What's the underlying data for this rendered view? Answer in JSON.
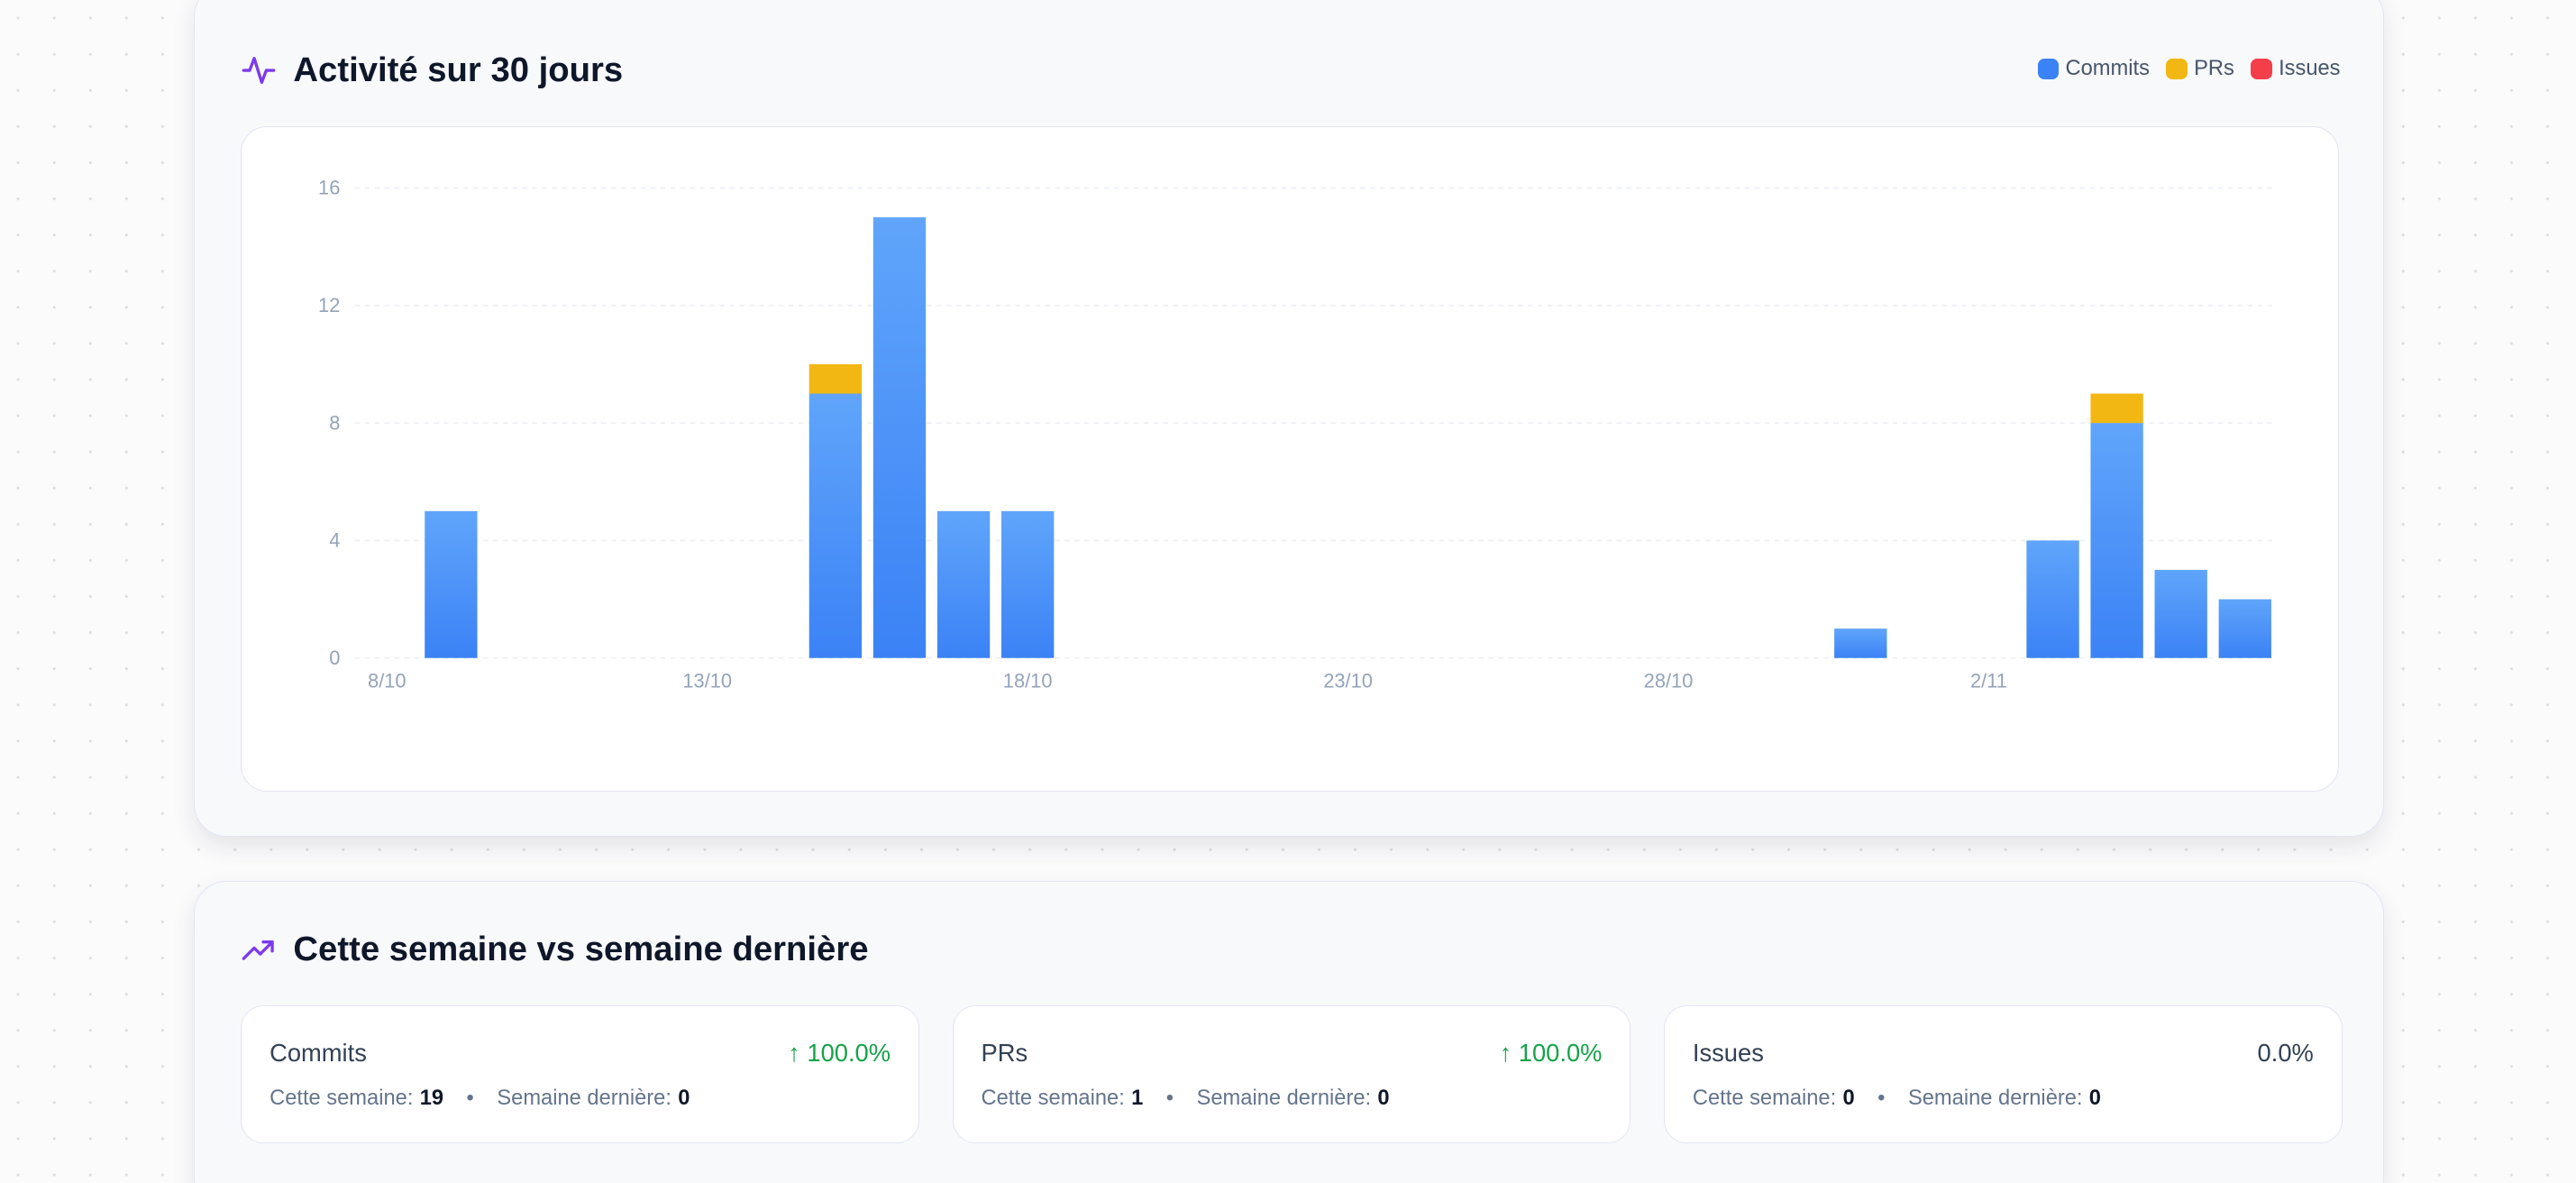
{
  "activity": {
    "title": "Activité sur 30 jours",
    "icon": "activity-pulse-icon",
    "legend": [
      {
        "label": "Commits",
        "color": "#3b82f6"
      },
      {
        "label": "PRs",
        "color": "#f2b713"
      },
      {
        "label": "Issues",
        "color": "#f43f4a"
      }
    ]
  },
  "chart_data": {
    "type": "bar",
    "stacked": true,
    "categories": [
      "8/10",
      "9/10",
      "10/10",
      "11/10",
      "12/10",
      "13/10",
      "14/10",
      "15/10",
      "16/10",
      "17/10",
      "18/10",
      "19/10",
      "20/10",
      "21/10",
      "22/10",
      "23/10",
      "24/10",
      "25/10",
      "26/10",
      "27/10",
      "28/10",
      "29/10",
      "30/10",
      "31/10",
      "1/11",
      "2/11",
      "3/11",
      "4/11",
      "5/11",
      "6/11"
    ],
    "x_tick_labels": [
      "8/10",
      "13/10",
      "18/10",
      "23/10",
      "28/10",
      "2/11"
    ],
    "y_ticks": [
      0,
      4,
      8,
      12,
      16
    ],
    "ylim": [
      0,
      16
    ],
    "grid": true,
    "legend_position": "top-right",
    "series": [
      {
        "name": "Commits",
        "color": "#3b82f6",
        "values": [
          0,
          5,
          0,
          0,
          0,
          0,
          0,
          9,
          15,
          5,
          5,
          0,
          0,
          0,
          0,
          0,
          0,
          0,
          0,
          0,
          0,
          0,
          0,
          1,
          0,
          0,
          4,
          8,
          3,
          2
        ]
      },
      {
        "name": "PRs",
        "color": "#f2b713",
        "values": [
          0,
          0,
          0,
          0,
          0,
          0,
          0,
          1,
          0,
          0,
          0,
          0,
          0,
          0,
          0,
          0,
          0,
          0,
          0,
          0,
          0,
          0,
          0,
          0,
          0,
          0,
          0,
          1,
          0,
          0
        ]
      },
      {
        "name": "Issues",
        "color": "#f43f4a",
        "values": [
          0,
          0,
          0,
          0,
          0,
          0,
          0,
          0,
          0,
          0,
          0,
          0,
          0,
          0,
          0,
          0,
          0,
          0,
          0,
          0,
          0,
          0,
          0,
          0,
          0,
          0,
          0,
          0,
          0,
          0
        ]
      }
    ]
  },
  "comparison": {
    "title": "Cette semaine vs semaine dernière",
    "icon": "trending-up-icon",
    "this_week_label": "Cette semaine:",
    "last_week_label": "Semaine dernière:",
    "separator": "•",
    "cards": [
      {
        "name": "Commits",
        "change": "↑ 100.0%",
        "change_color": "#16a34a",
        "this_week": "19",
        "last_week": "0"
      },
      {
        "name": "PRs",
        "change": "↑ 100.0%",
        "change_color": "#16a34a",
        "this_week": "1",
        "last_week": "0"
      },
      {
        "name": "Issues",
        "change": "0.0%",
        "change_color": "#334155",
        "this_week": "0",
        "last_week": "0"
      }
    ]
  }
}
